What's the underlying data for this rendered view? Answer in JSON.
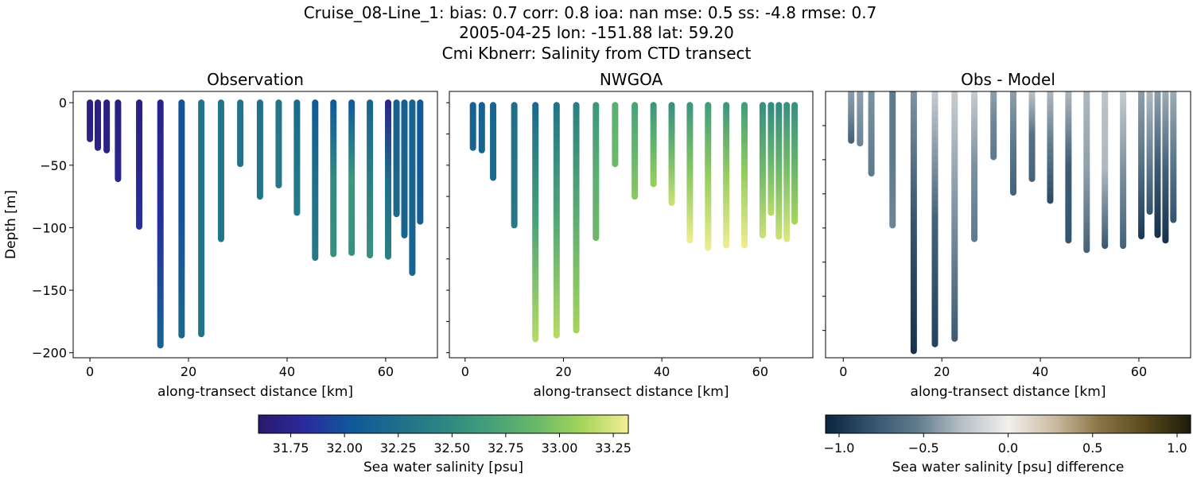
{
  "title_lines": [
    "Cruise_08-Line_1: bias: 0.7  corr: 0.8  ioa: nan  mse: 0.5  ss: -4.8  rmse: 0.7",
    "2005-04-25 lon: -151.88 lat: 59.20",
    "Cmi Kbnerr: Salinity from CTD transect"
  ],
  "chart_data": [
    {
      "type": "scatter",
      "title": "Observation",
      "xlabel": "along-transect distance [km]",
      "ylabel": "Depth [m]",
      "xlim": [
        -3.4,
        70.5
      ],
      "ylim": [
        -204,
        9
      ],
      "xticks": [
        0,
        20,
        40,
        60
      ],
      "yticks": [
        0,
        -50,
        -100,
        -150,
        -200
      ],
      "ytick_labels": [
        "0",
        "−50",
        "−100",
        "−150",
        "−200"
      ],
      "colormap": "salinity",
      "stations": [
        {
          "x": 0,
          "top": 0,
          "bottom": -29,
          "profile": [
            31.7,
            31.7,
            31.72
          ]
        },
        {
          "x": 1.6,
          "top": 0,
          "bottom": -36,
          "profile": [
            31.7,
            31.7,
            31.72
          ]
        },
        {
          "x": 3.4,
          "top": 0,
          "bottom": -38,
          "profile": [
            31.7,
            31.7,
            31.72
          ]
        },
        {
          "x": 5.7,
          "top": 0,
          "bottom": -61,
          "profile": [
            31.7,
            31.72,
            31.75
          ]
        },
        {
          "x": 10.0,
          "top": 0,
          "bottom": -99,
          "profile": [
            31.7,
            31.75,
            31.85
          ]
        },
        {
          "x": 14.3,
          "top": 0,
          "bottom": -194,
          "profile": [
            31.72,
            31.85,
            32.15
          ]
        },
        {
          "x": 18.6,
          "top": 0,
          "bottom": -186,
          "profile": [
            32.0,
            32.0,
            32.2
          ]
        },
        {
          "x": 22.6,
          "top": 0,
          "bottom": -185,
          "profile": [
            32.3,
            32.3,
            32.3
          ]
        },
        {
          "x": 26.6,
          "top": 0,
          "bottom": -109,
          "profile": [
            32.3,
            32.3,
            32.3
          ]
        },
        {
          "x": 30.5,
          "top": 0,
          "bottom": -49,
          "profile": [
            32.3,
            32.3,
            32.3
          ]
        },
        {
          "x": 34.5,
          "top": 0,
          "bottom": -75,
          "profile": [
            32.25,
            32.3,
            32.3
          ]
        },
        {
          "x": 38.3,
          "top": 0,
          "bottom": -66,
          "profile": [
            32.3,
            32.35,
            32.35
          ]
        },
        {
          "x": 42.0,
          "top": 0,
          "bottom": -88,
          "profile": [
            32.2,
            32.3,
            32.35
          ]
        },
        {
          "x": 45.7,
          "top": 0,
          "bottom": -124,
          "profile": [
            32.05,
            32.25,
            32.35
          ]
        },
        {
          "x": 49.4,
          "top": 0,
          "bottom": -121,
          "profile": [
            32.05,
            32.5,
            32.55
          ]
        },
        {
          "x": 53.1,
          "top": 0,
          "bottom": -120,
          "profile": [
            32.05,
            32.6,
            32.55
          ]
        },
        {
          "x": 56.8,
          "top": 0,
          "bottom": -122,
          "profile": [
            32.15,
            32.4,
            32.55
          ]
        },
        {
          "x": 60.5,
          "top": 0,
          "bottom": -123,
          "profile": [
            31.75,
            32.25,
            32.4
          ]
        },
        {
          "x": 62.2,
          "top": 0,
          "bottom": -89,
          "profile": [
            32.1,
            32.15,
            32.2
          ]
        },
        {
          "x": 63.8,
          "top": 0,
          "bottom": -106,
          "profile": [
            32.1,
            32.15,
            32.15
          ]
        },
        {
          "x": 65.4,
          "top": 0,
          "bottom": -136,
          "profile": [
            32.15,
            32.15,
            32.15
          ]
        },
        {
          "x": 67.0,
          "top": 0,
          "bottom": -95,
          "profile": [
            32.05,
            32.05,
            32.1
          ]
        }
      ]
    },
    {
      "type": "scatter",
      "title": "NWGOA",
      "xlabel": "along-transect distance [km]",
      "xlim": [
        -3.2,
        70.7
      ],
      "ylim": [
        -204,
        9
      ],
      "xticks": [
        0,
        20,
        40,
        60
      ],
      "colormap": "salinity",
      "stations": [
        {
          "x": 1.6,
          "top": -2,
          "bottom": -36,
          "profile": [
            32.1,
            32.15,
            32.15
          ]
        },
        {
          "x": 3.4,
          "top": -2,
          "bottom": -38,
          "profile": [
            32.1,
            32.15,
            32.15
          ]
        },
        {
          "x": 5.7,
          "top": -2,
          "bottom": -60,
          "profile": [
            32.15,
            32.2,
            32.2
          ]
        },
        {
          "x": 10.0,
          "top": -2,
          "bottom": -98,
          "profile": [
            32.25,
            32.3,
            32.35
          ]
        },
        {
          "x": 14.3,
          "top": -2,
          "bottom": -189,
          "profile": [
            32.2,
            32.7,
            33.15
          ]
        },
        {
          "x": 18.6,
          "top": -2,
          "bottom": -186,
          "profile": [
            32.3,
            32.75,
            33.15
          ]
        },
        {
          "x": 22.6,
          "top": -2,
          "bottom": -182,
          "profile": [
            32.4,
            32.8,
            33.1
          ]
        },
        {
          "x": 26.6,
          "top": -2,
          "bottom": -108,
          "profile": [
            32.6,
            32.8,
            32.9
          ]
        },
        {
          "x": 30.5,
          "top": -2,
          "bottom": -49,
          "profile": [
            32.8,
            32.85,
            32.9
          ]
        },
        {
          "x": 34.5,
          "top": -2,
          "bottom": -75,
          "profile": [
            32.7,
            32.85,
            33.0
          ]
        },
        {
          "x": 38.3,
          "top": -2,
          "bottom": -65,
          "profile": [
            32.6,
            32.85,
            33.05
          ]
        },
        {
          "x": 42.0,
          "top": -2,
          "bottom": -80,
          "profile": [
            32.55,
            32.9,
            33.2
          ]
        },
        {
          "x": 45.7,
          "top": -2,
          "bottom": -110,
          "profile": [
            32.6,
            33.0,
            33.3
          ]
        },
        {
          "x": 49.4,
          "top": -2,
          "bottom": -116,
          "profile": [
            32.65,
            33.05,
            33.3
          ]
        },
        {
          "x": 53.1,
          "top": -2,
          "bottom": -114,
          "profile": [
            32.6,
            33.05,
            33.3
          ]
        },
        {
          "x": 56.8,
          "top": -2,
          "bottom": -114,
          "profile": [
            32.65,
            33.05,
            33.3
          ]
        },
        {
          "x": 60.5,
          "top": -2,
          "bottom": -106,
          "profile": [
            32.55,
            32.9,
            33.2
          ]
        },
        {
          "x": 62.2,
          "top": -2,
          "bottom": -88,
          "profile": [
            32.5,
            32.85,
            33.15
          ]
        },
        {
          "x": 63.8,
          "top": -2,
          "bottom": -107,
          "profile": [
            32.5,
            32.9,
            33.2
          ]
        },
        {
          "x": 65.4,
          "top": -2,
          "bottom": -109,
          "profile": [
            32.55,
            32.95,
            33.25
          ]
        },
        {
          "x": 67.0,
          "top": -2,
          "bottom": -95,
          "profile": [
            32.55,
            32.85,
            33.1
          ]
        }
      ]
    },
    {
      "type": "scatter",
      "title": "Obs - Model",
      "xlabel": "along-transect distance [km]",
      "xlim": [
        -3.6,
        70.5
      ],
      "ylim": [
        -195,
        0
      ],
      "xticks": [
        0,
        20,
        40,
        60
      ],
      "colormap": "difference",
      "stations": [
        {
          "x": 1.6,
          "top": 0,
          "bottom": -36,
          "profile": [
            -0.4,
            -0.5,
            -0.7
          ]
        },
        {
          "x": 3.4,
          "top": 0,
          "bottom": -38,
          "profile": [
            -0.4,
            -0.45,
            -0.5
          ]
        },
        {
          "x": 5.7,
          "top": 0,
          "bottom": -60,
          "profile": [
            -0.45,
            -0.5,
            -0.55
          ]
        },
        {
          "x": 10.0,
          "top": 0,
          "bottom": -98,
          "profile": [
            -0.55,
            -0.55,
            -0.5
          ]
        },
        {
          "x": 14.3,
          "top": 0,
          "bottom": -190,
          "profile": [
            -0.45,
            -0.8,
            -1.0
          ]
        },
        {
          "x": 18.6,
          "top": 0,
          "bottom": -185,
          "profile": [
            -0.2,
            -0.7,
            -0.9
          ]
        },
        {
          "x": 22.6,
          "top": 0,
          "bottom": -181,
          "profile": [
            -0.2,
            -0.45,
            -0.75
          ]
        },
        {
          "x": 26.6,
          "top": 0,
          "bottom": -108,
          "profile": [
            -0.2,
            -0.45,
            -0.55
          ]
        },
        {
          "x": 30.5,
          "top": 0,
          "bottom": -48,
          "profile": [
            -0.4,
            -0.5,
            -0.55
          ]
        },
        {
          "x": 34.5,
          "top": 0,
          "bottom": -74,
          "profile": [
            -0.4,
            -0.55,
            -0.7
          ]
        },
        {
          "x": 38.3,
          "top": 0,
          "bottom": -64,
          "profile": [
            -0.25,
            -0.6,
            -0.7
          ]
        },
        {
          "x": 42.0,
          "top": 0,
          "bottom": -80,
          "profile": [
            -0.3,
            -0.55,
            -0.85
          ]
        },
        {
          "x": 45.7,
          "top": 0,
          "bottom": -109,
          "profile": [
            -0.3,
            -0.75,
            -0.8
          ]
        },
        {
          "x": 49.4,
          "top": 0,
          "bottom": -116,
          "profile": [
            -0.3,
            -0.4,
            -0.7
          ]
        },
        {
          "x": 53.1,
          "top": 0,
          "bottom": -113,
          "profile": [
            -0.25,
            -0.3,
            -0.75
          ]
        },
        {
          "x": 56.8,
          "top": 0,
          "bottom": -113,
          "profile": [
            -0.2,
            -0.45,
            -0.7
          ]
        },
        {
          "x": 60.5,
          "top": 0,
          "bottom": -106,
          "profile": [
            -0.4,
            -0.6,
            -0.95
          ]
        },
        {
          "x": 62.2,
          "top": 0,
          "bottom": -88,
          "profile": [
            -0.3,
            -0.5,
            -0.8
          ]
        },
        {
          "x": 63.8,
          "top": 0,
          "bottom": -105,
          "profile": [
            -0.4,
            -0.75,
            -1.0
          ]
        },
        {
          "x": 65.4,
          "top": 0,
          "bottom": -109,
          "profile": [
            -0.35,
            -0.7,
            -1.0
          ]
        },
        {
          "x": 67.0,
          "top": 0,
          "bottom": -94,
          "profile": [
            -0.35,
            -0.55,
            -0.8
          ]
        }
      ]
    }
  ],
  "colorbars": [
    {
      "label": "Sea water salinity [psu]",
      "range": [
        31.6,
        33.32
      ],
      "ticks": [
        31.75,
        32.0,
        32.25,
        32.5,
        32.75,
        33.0,
        33.25
      ],
      "tick_labels": [
        "31.75",
        "32.00",
        "32.25",
        "32.50",
        "32.75",
        "33.00",
        "33.25"
      ],
      "colors": [
        "#2a186c",
        "#2a2a9c",
        "#10589a",
        "#1e6e8a",
        "#2e8582",
        "#45a07a",
        "#6ab86a",
        "#a5d55a",
        "#f3ee94"
      ]
    },
    {
      "label": "Sea water salinity [psu] difference",
      "range": [
        -1.08,
        1.08
      ],
      "ticks": [
        -1.0,
        -0.5,
        0.0,
        0.5,
        1.0
      ],
      "tick_labels": [
        "−1.0",
        "−0.5",
        "0.0",
        "0.5",
        "1.0"
      ],
      "colors": [
        "#0b2440",
        "#33536d",
        "#607b8e",
        "#b8c0c6",
        "#f2efec",
        "#cbbca4",
        "#8a7445",
        "#5a4a1c",
        "#1c1c0c"
      ]
    }
  ]
}
